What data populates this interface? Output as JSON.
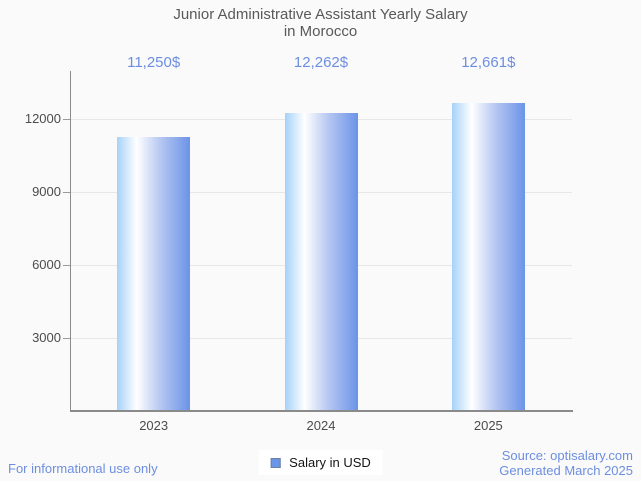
{
  "title": {
    "line1": "Junior Administrative Assistant Yearly Salary",
    "line2": "in Morocco"
  },
  "legend": {
    "label": "Salary in USD",
    "marker_color": "#6a96e8"
  },
  "footer": {
    "disclaimer": "For informational use only",
    "source_line1": "Source: optisalary.com",
    "source_line2": "Generated March 2025"
  },
  "chart_data": {
    "type": "bar",
    "title": "Junior Administrative Assistant Yearly Salary in Morocco",
    "categories": [
      "2023",
      "2024",
      "2025"
    ],
    "series": [
      {
        "name": "Salary in USD",
        "values": [
          11250,
          12262,
          12661
        ],
        "value_labels": [
          "11,250$",
          "12,262$",
          "12,661$"
        ]
      }
    ],
    "xlabel": "",
    "ylabel": "",
    "yticks": [
      3000,
      6000,
      9000,
      12000
    ],
    "ytick_labels": [
      "3000",
      "6000",
      "9000",
      "12000"
    ],
    "ylim": [
      0,
      13973
    ],
    "grid": true,
    "legend_position": "bottom",
    "colors": {
      "bar_gradient": [
        {
          "color": "#a6d2f9",
          "stop": 0
        },
        {
          "color": "#ffffff",
          "stop": 27
        },
        {
          "color": "#b9c9f2",
          "stop": 58
        },
        {
          "color": "#6b93e8",
          "stop": 100
        }
      ],
      "value_label_text": "#6d8ee0",
      "footer_text": "#6d8ee0",
      "title_text": "#58595b",
      "tick_label_text": "#4c4c4c",
      "axis_line": "#8a8a8a",
      "gridline": "#e7e7e7",
      "background": "#fafafa",
      "legend_box_background": "#ffffff"
    }
  }
}
